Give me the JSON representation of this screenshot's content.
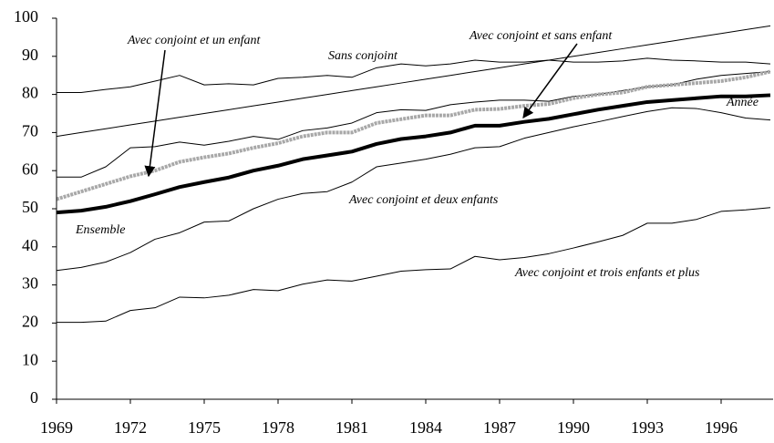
{
  "chart_data": {
    "type": "line",
    "x": [
      1969,
      1970,
      1971,
      1972,
      1973,
      1974,
      1975,
      1976,
      1977,
      1978,
      1979,
      1980,
      1981,
      1982,
      1983,
      1984,
      1985,
      1986,
      1987,
      1988,
      1989,
      1990,
      1991,
      1992,
      1993,
      1994,
      1995,
      1996,
      1997,
      1998
    ],
    "xlim": [
      1969,
      1998
    ],
    "xticks": [
      1969,
      1972,
      1975,
      1978,
      1981,
      1984,
      1987,
      1990,
      1993,
      1996
    ],
    "ylim": [
      0,
      100
    ],
    "yticks": [
      0,
      10,
      20,
      30,
      40,
      50,
      60,
      70,
      80,
      90,
      100
    ],
    "series": [
      {
        "name": "Sans conjoint",
        "color": "#000000",
        "width": 1,
        "values": [
          80.5,
          80.5,
          81.3,
          82,
          83.5,
          85,
          82.5,
          82.8,
          82.5,
          84.2,
          84.5,
          85,
          84.5,
          87,
          88,
          87.5,
          88,
          89,
          88.5,
          88.5,
          89,
          88.5,
          88.5,
          88.8,
          89.5,
          89,
          88.8,
          88.5,
          88.5,
          88
        ]
      },
      {
        "name": "Année",
        "color": "#000000",
        "width": 1,
        "values": [
          69,
          70,
          71,
          72,
          73,
          74,
          75,
          76,
          77,
          78,
          79,
          80,
          81,
          82,
          83,
          84,
          85,
          86,
          87,
          88,
          89,
          90,
          91,
          92,
          93,
          94,
          95,
          96,
          97,
          98
        ]
      },
      {
        "name": "Avec conjoint et sans enfant",
        "color": "#000000",
        "width": 1,
        "values": [
          58.3,
          58.3,
          61,
          66,
          66.3,
          67.5,
          66.7,
          67.7,
          69,
          68.2,
          70.5,
          71.2,
          72.5,
          75.2,
          76,
          75.8,
          77.3,
          78,
          78.5,
          78.5,
          78.2,
          79.5,
          80,
          81,
          82,
          82.5,
          84,
          85,
          85.5,
          86
        ]
      },
      {
        "name": "Avec conjoint et un enfant",
        "color": "#a8a8a8",
        "width": 4,
        "values": [
          52.5,
          54.5,
          56.5,
          58.5,
          60,
          62.3,
          63.5,
          64.5,
          66,
          67.2,
          69,
          70,
          70,
          72.5,
          73.5,
          74.5,
          74.5,
          76,
          76.2,
          77,
          77.5,
          79,
          80,
          80.5,
          82,
          82.5,
          83,
          83.5,
          84.5,
          86
        ]
      },
      {
        "name": "Ensemble",
        "color": "#000000",
        "width": 4,
        "values": [
          49,
          49.5,
          50.5,
          52,
          53.8,
          55.7,
          57,
          58.2,
          60,
          61.3,
          63,
          64,
          65,
          67,
          68.3,
          69,
          70,
          71.8,
          71.8,
          72.8,
          73.6,
          74.8,
          76,
          77,
          78,
          78.5,
          79,
          79.5,
          79.5,
          79.8
        ]
      },
      {
        "name": "Avec conjoint et deux enfants",
        "color": "#000000",
        "width": 1,
        "values": [
          33.8,
          34.6,
          36,
          38.5,
          42,
          43.7,
          46.5,
          46.8,
          50,
          52.5,
          54,
          54.5,
          57,
          61,
          62,
          63,
          64.3,
          66,
          66.3,
          68.5,
          70,
          71.5,
          72.8,
          74.2,
          75.5,
          76.5,
          76.3,
          75.2,
          73.8,
          73.3
        ]
      },
      {
        "name": "Avec conjoint et trois enfants et plus",
        "color": "#000000",
        "width": 1,
        "values": [
          20.2,
          20.2,
          20.5,
          23.3,
          24,
          26.8,
          26.6,
          27.3,
          28.8,
          28.5,
          30.2,
          31.3,
          31,
          32.3,
          33.6,
          34,
          34.2,
          37.5,
          36.6,
          37.2,
          38.2,
          39.7,
          41.3,
          43,
          46.2,
          46.2,
          47.2,
          49.3,
          49.7,
          50.3
        ]
      }
    ]
  }
}
